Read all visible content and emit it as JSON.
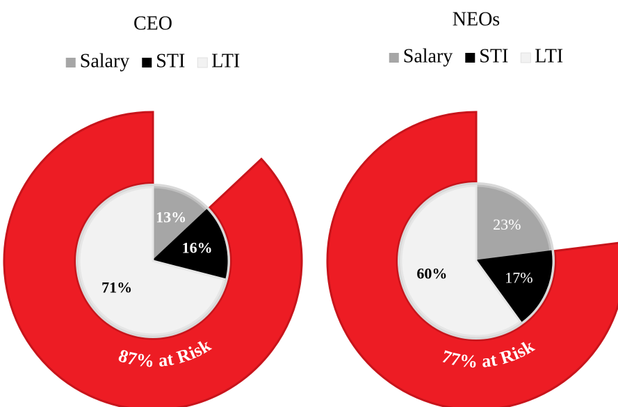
{
  "chart_data": [
    {
      "type": "pie",
      "title": "CEO",
      "categories": [
        "Salary",
        "STI",
        "LTI"
      ],
      "values": [
        13,
        16,
        71
      ],
      "value_labels": [
        "13%",
        "16%",
        "71%"
      ],
      "colors": [
        "#a6a6a6",
        "#000000",
        "#f2f2f2"
      ],
      "risk": {
        "value": 87,
        "label": "87% at Risk",
        "color": "#ed1c24"
      }
    },
    {
      "type": "pie",
      "title": "NEOs",
      "categories": [
        "Salary",
        "STI",
        "LTI"
      ],
      "values": [
        23,
        17,
        60
      ],
      "value_labels": [
        "23%",
        "17%",
        "60%"
      ],
      "colors": [
        "#a6a6a6",
        "#000000",
        "#f2f2f2"
      ],
      "risk": {
        "value": 77,
        "label": "77% at Risk",
        "color": "#ed1c24"
      }
    }
  ]
}
